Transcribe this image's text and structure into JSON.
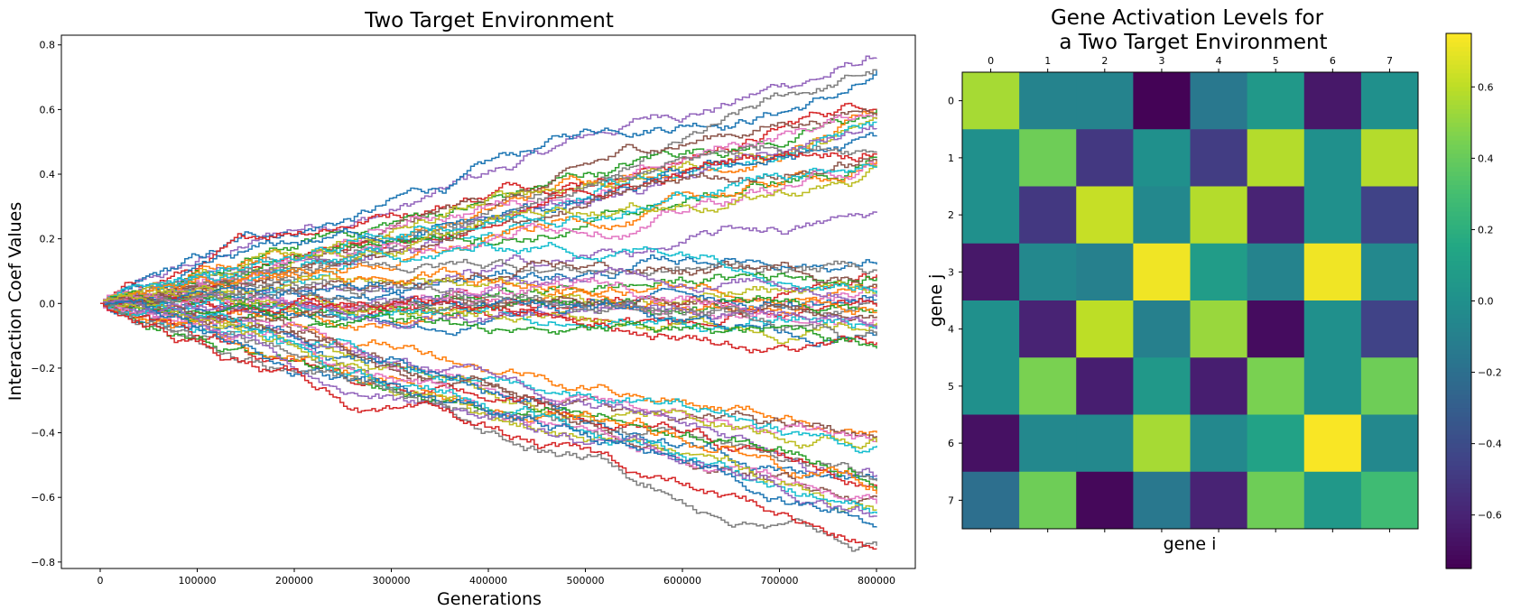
{
  "chart_data": [
    {
      "type": "line",
      "title": "Two Target Environment",
      "xlabel": "Generations",
      "ylabel": "Interaction Coef Values",
      "xlim": [
        -40000,
        840000
      ],
      "ylim": [
        -0.82,
        0.83
      ],
      "xticks": [
        0,
        100000,
        200000,
        300000,
        400000,
        500000,
        600000,
        700000,
        800000
      ],
      "xtick_labels": [
        "0",
        "100000",
        "200000",
        "300000",
        "400000",
        "500000",
        "600000",
        "700000",
        "800000"
      ],
      "yticks": [
        -0.8,
        -0.6,
        -0.4,
        -0.2,
        0.0,
        0.2,
        0.4,
        0.6,
        0.8
      ],
      "ytick_labels": [
        "−0.8",
        "−0.6",
        "−0.4",
        "−0.2",
        "0.0",
        "0.2",
        "0.4",
        "0.6",
        "0.8"
      ],
      "series_count": 64,
      "x_start": 0,
      "x_end": 800000,
      "start_value": 0.0,
      "final_values": [
        0.76,
        0.72,
        0.72,
        0.6,
        0.6,
        0.59,
        0.58,
        0.57,
        0.57,
        0.56,
        0.54,
        0.52,
        0.47,
        0.46,
        0.45,
        0.44,
        0.44,
        0.43,
        0.42,
        0.42,
        0.28,
        0.12,
        0.1,
        0.09,
        0.08,
        0.06,
        0.05,
        0.05,
        0.04,
        0.03,
        0.02,
        0.01,
        0.0,
        -0.01,
        -0.02,
        -0.03,
        -0.04,
        -0.05,
        -0.06,
        -0.07,
        -0.08,
        -0.09,
        -0.1,
        -0.12,
        -0.14,
        -0.4,
        -0.41,
        -0.42,
        -0.43,
        -0.44,
        -0.53,
        -0.54,
        -0.55,
        -0.57,
        -0.58,
        -0.59,
        -0.6,
        -0.62,
        -0.64,
        -0.65,
        -0.66,
        -0.69,
        -0.75,
        -0.76
      ],
      "colors": [
        "#9467bd",
        "#1f77b4",
        "#7f7f7f",
        "#d62728",
        "#2ca02c",
        "#ff7f0e",
        "#8c564b",
        "#e377c2",
        "#bcbd22",
        "#17becf"
      ]
    },
    {
      "type": "heatmap",
      "title_line1": "Gene Activation Levels for",
      "title_line2": "a Two Target Environment",
      "xlabel": "gene i",
      "ylabel": "gene j",
      "x_labels": [
        "0",
        "1",
        "2",
        "3",
        "4",
        "5",
        "6",
        "7"
      ],
      "y_labels": [
        "0",
        "1",
        "2",
        "3",
        "4",
        "5",
        "6",
        "7"
      ],
      "vmin": -0.75,
      "vmax": 0.75,
      "colorbar_ticks": [
        0.6,
        0.4,
        0.2,
        0.0,
        -0.2,
        -0.4,
        -0.6
      ],
      "colorbar_tick_labels": [
        "0.6",
        "0.4",
        "0.2",
        "0.0",
        "−0.2",
        "−0.4",
        "−0.6"
      ],
      "matrix": [
        [
          0.55,
          -0.08,
          -0.08,
          -0.74,
          -0.15,
          0.05,
          -0.65,
          0.0
        ],
        [
          0.0,
          0.42,
          -0.5,
          0.0,
          -0.48,
          0.58,
          0.0,
          0.58
        ],
        [
          0.0,
          -0.5,
          0.62,
          -0.05,
          0.58,
          -0.6,
          0.0,
          -0.45
        ],
        [
          -0.65,
          -0.05,
          -0.1,
          0.72,
          0.08,
          -0.08,
          0.72,
          -0.05
        ],
        [
          0.0,
          -0.6,
          0.6,
          -0.1,
          0.52,
          -0.7,
          0.0,
          -0.45
        ],
        [
          0.0,
          0.45,
          -0.62,
          0.05,
          -0.62,
          0.45,
          0.0,
          0.42
        ],
        [
          -0.68,
          -0.05,
          -0.05,
          0.55,
          -0.05,
          0.12,
          0.74,
          -0.05
        ],
        [
          -0.2,
          0.42,
          -0.72,
          -0.15,
          -0.6,
          0.42,
          0.05,
          0.28
        ]
      ]
    }
  ]
}
